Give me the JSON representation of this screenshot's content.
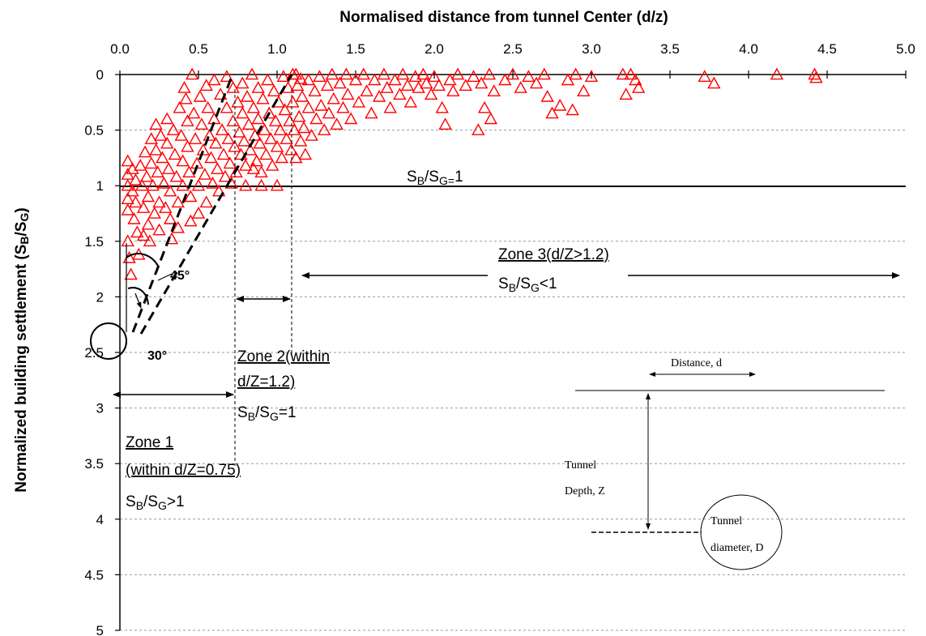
{
  "chart_data": {
    "type": "scatter",
    "xlabel": "Normalised distance from tunnel Center (d/z)",
    "ylabel": "Normalized building settlement (S B/S G)",
    "ylabel_parts": {
      "pre": "Normalized building settlement (S",
      "sub1": "B",
      "mid": "/S",
      "sub2": "G",
      "post": ")"
    },
    "xlim": [
      0,
      5
    ],
    "ylim": [
      0,
      5
    ],
    "y_inverted": true,
    "x_axis_position": "top",
    "x_ticks": [
      "0.0",
      "0.5",
      "1.0",
      "1.5",
      "2.0",
      "2.5",
      "3.0",
      "3.5",
      "4.0",
      "4.5",
      "5.0"
    ],
    "y_ticks": [
      "0",
      "0.5",
      "1",
      "1.5",
      "2",
      "2.5",
      "3",
      "3.5",
      "4",
      "4.5",
      "5"
    ],
    "grid": {
      "horizontal": true,
      "style": "dashed"
    },
    "marker": {
      "shape": "open-triangle",
      "color": "#ff0000"
    },
    "series": [
      {
        "values": [
          [
            0.05,
            0.78
          ],
          [
            0.05,
            0.9
          ],
          [
            0.05,
            1.0
          ],
          [
            0.05,
            1.12
          ],
          [
            0.05,
            1.22
          ],
          [
            0.05,
            1.5
          ],
          [
            0.06,
            1.65
          ],
          [
            0.07,
            1.8
          ],
          [
            0.08,
            0.85
          ],
          [
            0.08,
            1.05
          ],
          [
            0.09,
            1.3
          ],
          [
            0.1,
            0.95
          ],
          [
            0.1,
            1.15
          ],
          [
            0.11,
            1.42
          ],
          [
            0.12,
            1.62
          ],
          [
            0.13,
            0.82
          ],
          [
            0.14,
            1.0
          ],
          [
            0.15,
            1.2
          ],
          [
            0.15,
            1.45
          ],
          [
            0.16,
            0.7
          ],
          [
            0.17,
            0.92
          ],
          [
            0.18,
            1.1
          ],
          [
            0.18,
            1.35
          ],
          [
            0.19,
            1.5
          ],
          [
            0.2,
            0.58
          ],
          [
            0.2,
            0.8
          ],
          [
            0.21,
            1.0
          ],
          [
            0.22,
            1.25
          ],
          [
            0.23,
            0.45
          ],
          [
            0.23,
            0.68
          ],
          [
            0.24,
            0.88
          ],
          [
            0.25,
            1.15
          ],
          [
            0.25,
            1.4
          ],
          [
            0.26,
            0.55
          ],
          [
            0.27,
            0.75
          ],
          [
            0.28,
            0.98
          ],
          [
            0.29,
            1.2
          ],
          [
            0.3,
            0.4
          ],
          [
            0.3,
            0.62
          ],
          [
            0.31,
            0.85
          ],
          [
            0.32,
            1.05
          ],
          [
            0.32,
            1.3
          ],
          [
            0.33,
            1.48
          ],
          [
            0.34,
            0.5
          ],
          [
            0.35,
            0.72
          ],
          [
            0.36,
            0.92
          ],
          [
            0.37,
            1.15
          ],
          [
            0.37,
            1.38
          ],
          [
            0.38,
            0.3
          ],
          [
            0.39,
            0.55
          ],
          [
            0.4,
            0.78
          ],
          [
            0.4,
            1.0
          ],
          [
            0.41,
            0.12
          ],
          [
            0.42,
            0.22
          ],
          [
            0.43,
            0.42
          ],
          [
            0.43,
            0.65
          ],
          [
            0.44,
            0.88
          ],
          [
            0.45,
            1.1
          ],
          [
            0.45,
            1.32
          ],
          [
            0.46,
            0.0
          ],
          [
            0.47,
            0.35
          ],
          [
            0.48,
            0.58
          ],
          [
            0.49,
            0.8
          ],
          [
            0.5,
            1.0
          ],
          [
            0.5,
            1.25
          ],
          [
            0.51,
            0.2
          ],
          [
            0.52,
            0.45
          ],
          [
            0.53,
            0.68
          ],
          [
            0.54,
            0.9
          ],
          [
            0.55,
            0.1
          ],
          [
            0.55,
            1.15
          ],
          [
            0.56,
            0.3
          ],
          [
            0.57,
            0.55
          ],
          [
            0.58,
            0.75
          ],
          [
            0.59,
            0.98
          ],
          [
            0.6,
            0.05
          ],
          [
            0.6,
            0.4
          ],
          [
            0.61,
            0.62
          ],
          [
            0.62,
            0.85
          ],
          [
            0.63,
            1.05
          ],
          [
            0.64,
            0.18
          ],
          [
            0.65,
            0.5
          ],
          [
            0.66,
            0.72
          ],
          [
            0.67,
            0.92
          ],
          [
            0.68,
            0.02
          ],
          [
            0.68,
            0.3
          ],
          [
            0.69,
            0.58
          ],
          [
            0.7,
            0.8
          ],
          [
            0.71,
            0.98
          ],
          [
            0.72,
            0.12
          ],
          [
            0.72,
            0.42
          ],
          [
            0.73,
            0.65
          ],
          [
            0.74,
            0.88
          ],
          [
            0.75,
            0.25
          ],
          [
            0.76,
            0.52
          ],
          [
            0.77,
            0.72
          ],
          [
            0.78,
            0.08
          ],
          [
            0.78,
            0.35
          ],
          [
            0.79,
            0.6
          ],
          [
            0.8,
            0.82
          ],
          [
            0.8,
            1.0
          ],
          [
            0.81,
            0.2
          ],
          [
            0.82,
            0.45
          ],
          [
            0.83,
            0.68
          ],
          [
            0.84,
            0.0
          ],
          [
            0.85,
            0.3
          ],
          [
            0.86,
            0.55
          ],
          [
            0.87,
            0.78
          ],
          [
            0.88,
            0.12
          ],
          [
            0.88,
            0.4
          ],
          [
            0.89,
            0.62
          ],
          [
            0.9,
            0.88
          ],
          [
            0.91,
            0.22
          ],
          [
            0.92,
            0.5
          ],
          [
            0.93,
            0.72
          ],
          [
            0.94,
            0.05
          ],
          [
            0.95,
            0.35
          ],
          [
            0.96,
            0.58
          ],
          [
            0.97,
            0.82
          ],
          [
            0.98,
            0.15
          ],
          [
            0.99,
            0.42
          ],
          [
            1.0,
            0.65
          ],
          [
            1.0,
            1.0
          ],
          [
            1.01,
            0.25
          ],
          [
            1.02,
            0.5
          ],
          [
            1.03,
            0.75
          ],
          [
            1.04,
            0.02
          ],
          [
            1.05,
            0.32
          ],
          [
            1.06,
            0.58
          ],
          [
            1.07,
            0.12
          ],
          [
            1.08,
            0.42
          ],
          [
            1.09,
            0.68
          ],
          [
            1.1,
            0.0
          ],
          [
            1.1,
            0.25
          ],
          [
            1.11,
            0.5
          ],
          [
            1.12,
            0.75
          ],
          [
            1.13,
            0.1
          ],
          [
            1.14,
            0.38
          ],
          [
            1.15,
            0.6
          ],
          [
            1.16,
            0.2
          ],
          [
            1.17,
            0.48
          ],
          [
            1.18,
            0.72
          ],
          [
            1.2,
            0.05
          ],
          [
            1.2,
            0.3
          ],
          [
            1.22,
            0.55
          ],
          [
            1.24,
            0.15
          ],
          [
            1.25,
            0.4
          ],
          [
            1.27,
            0.02
          ],
          [
            1.28,
            0.28
          ],
          [
            1.3,
            0.5
          ],
          [
            1.32,
            0.1
          ],
          [
            1.33,
            0.35
          ],
          [
            1.35,
            0.0
          ],
          [
            1.36,
            0.22
          ],
          [
            1.38,
            0.45
          ],
          [
            1.4,
            0.08
          ],
          [
            1.42,
            0.3
          ],
          [
            1.44,
            0.0
          ],
          [
            1.45,
            0.18
          ],
          [
            1.47,
            0.4
          ],
          [
            1.5,
            0.05
          ],
          [
            1.52,
            0.25
          ],
          [
            1.55,
            0.0
          ],
          [
            1.57,
            0.15
          ],
          [
            1.6,
            0.35
          ],
          [
            1.62,
            0.05
          ],
          [
            1.65,
            0.2
          ],
          [
            1.68,
            0.0
          ],
          [
            1.7,
            0.12
          ],
          [
            1.72,
            0.3
          ],
          [
            1.75,
            0.05
          ],
          [
            1.78,
            0.18
          ],
          [
            1.8,
            0.0
          ],
          [
            1.83,
            0.1
          ],
          [
            1.85,
            0.25
          ],
          [
            1.88,
            0.02
          ],
          [
            1.9,
            0.12
          ],
          [
            1.93,
            0.0
          ],
          [
            1.95,
            0.08
          ],
          [
            1.98,
            0.18
          ],
          [
            2.0,
            0.02
          ],
          [
            2.03,
            0.1
          ],
          [
            2.05,
            0.3
          ],
          [
            2.07,
            0.45
          ],
          [
            2.1,
            0.05
          ],
          [
            2.12,
            0.15
          ],
          [
            2.15,
            0.0
          ],
          [
            2.2,
            0.1
          ],
          [
            2.25,
            0.02
          ],
          [
            2.28,
            0.5
          ],
          [
            2.3,
            0.08
          ],
          [
            2.32,
            0.3
          ],
          [
            2.35,
            0.0
          ],
          [
            2.36,
            0.4
          ],
          [
            2.38,
            0.15
          ],
          [
            2.45,
            0.05
          ],
          [
            2.5,
            0.0
          ],
          [
            2.55,
            0.12
          ],
          [
            2.6,
            0.02
          ],
          [
            2.65,
            0.08
          ],
          [
            2.7,
            0.0
          ],
          [
            2.72,
            0.2
          ],
          [
            2.75,
            0.35
          ],
          [
            2.8,
            0.28
          ],
          [
            2.85,
            0.05
          ],
          [
            2.88,
            0.32
          ],
          [
            2.9,
            0.0
          ],
          [
            2.95,
            0.15
          ],
          [
            3.0,
            0.02
          ],
          [
            3.2,
            0.0
          ],
          [
            3.22,
            0.18
          ],
          [
            3.25,
            0.0
          ],
          [
            3.28,
            0.05
          ],
          [
            3.3,
            0.12
          ],
          [
            3.72,
            0.02
          ],
          [
            3.78,
            0.08
          ],
          [
            4.18,
            0.0
          ],
          [
            4.42,
            0.0
          ],
          [
            4.43,
            0.03
          ],
          [
            1.12,
            0.0
          ],
          [
            1.15,
            0.04
          ],
          [
            0.85,
            0.85
          ],
          [
            0.9,
            1.0
          ]
        ]
      }
    ],
    "reference_lines": [
      {
        "label_pre": "S",
        "label_sub1": "B",
        "label_mid": "/S",
        "label_sub2": "G=",
        "label_post": "1"
      }
    ],
    "annotations": {
      "angle_45": "45°",
      "angle_30": "30°",
      "zone1": {
        "title": "Zone 1",
        "range": "(within d/Z=0.75)",
        "rel_pre": "S",
        "rel_sub1": "B",
        "rel_mid": "/S",
        "rel_sub2": "G",
        "rel_post": ">1"
      },
      "zone2": {
        "title": "Zone 2(within",
        "range": "d/Z=1.2)",
        "rel_pre": "S",
        "rel_sub1": "B",
        "rel_mid": "/S",
        "rel_sub2": "G",
        "rel_post": "=1"
      },
      "zone3": {
        "title": "Zone 3(d/Z>1.2)",
        "rel_pre": "S",
        "rel_sub1": "B",
        "rel_mid": "/S",
        "rel_sub2": "G",
        "rel_post": "<1"
      },
      "inset": {
        "distance": "Distance, d",
        "depth_line1": "Tunnel",
        "depth_line2": "Depth, Z",
        "diameter_line1": "Tunnel",
        "diameter_line2": "diameter, D"
      }
    }
  }
}
